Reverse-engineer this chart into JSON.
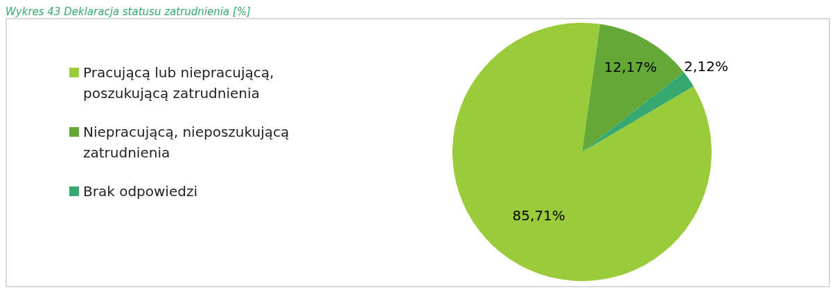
{
  "chart_data": {
    "type": "pie",
    "title": "Wykres 43 Deklaracja statusu zatrudnienia [%]",
    "categories": [
      "Pracującą lub niepracującą, poszukującą zatrudnienia",
      "Niepracującą, nieposzukującą zatrudnienia",
      "Brak odpowiedzi"
    ],
    "values": [
      85.71,
      12.17,
      2.12
    ],
    "colors": [
      "#9acb3a",
      "#64a838",
      "#36a870"
    ],
    "value_labels": [
      "85,71%",
      "12,17%",
      "2,12%"
    ],
    "legend": "left"
  }
}
